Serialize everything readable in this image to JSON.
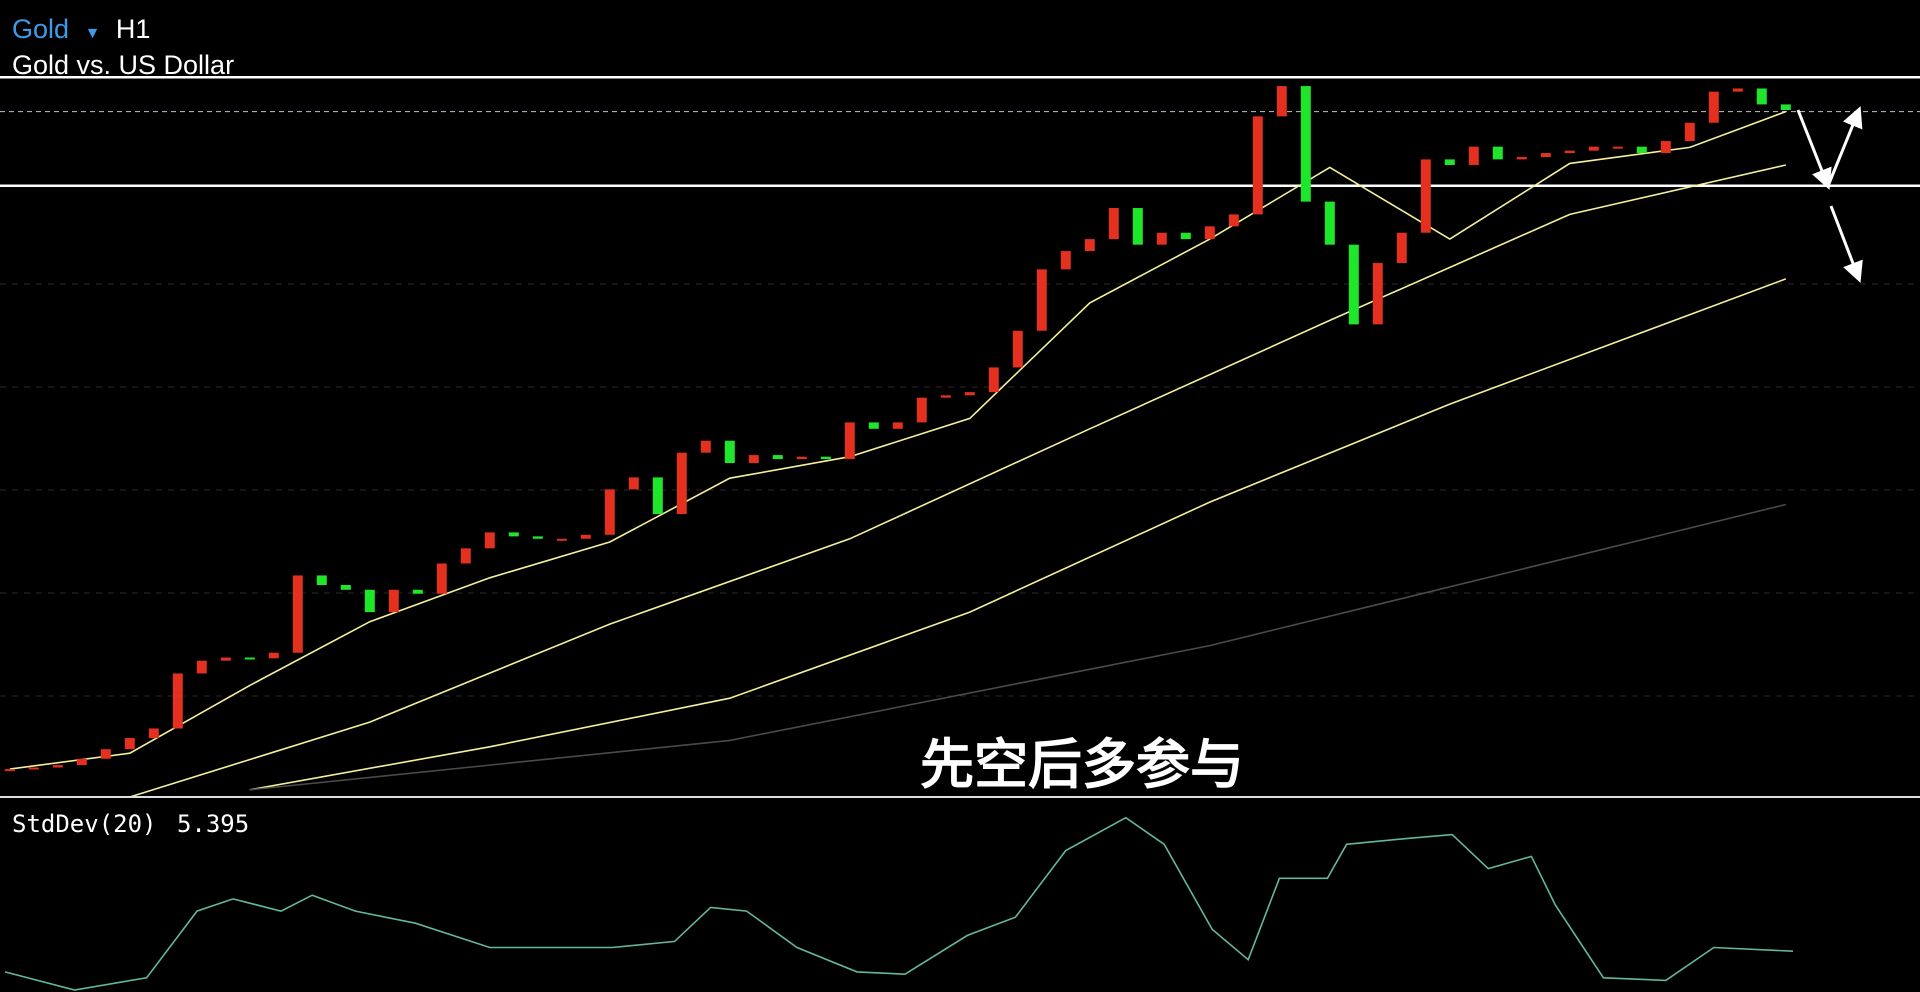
{
  "header": {
    "symbol": "Gold",
    "timeframe": "H1",
    "description": "Gold vs. US Dollar"
  },
  "annotation": "先空后多参与",
  "chart_data": [
    {
      "type": "candlestick",
      "up_color": "#e3301f",
      "down_color": "#1fe62a",
      "open": [
        3.3,
        3.5,
        3.7,
        4.0,
        4.8,
        6.0,
        7.4,
        8.6,
        15.5,
        17.1,
        17.5,
        17.4,
        18.1,
        27.8,
        26.6,
        26.0,
        23.2,
        26.0,
        25.5,
        29.3,
        31.2,
        33.2,
        32.7,
        32.4,
        32.4,
        32.9,
        38.6,
        40.1,
        35.5,
        43.2,
        44.7,
        41.9,
        42.9,
        42.4,
        42.7,
        42.4,
        47.0,
        46.2,
        47.0,
        50.1,
        50.4,
        50.8,
        53.9,
        58.5,
        66.2,
        68.5,
        70.0,
        73.9,
        69.3,
        70.8,
        70.0,
        71.6,
        73.1,
        85.4,
        89.2,
        74.7,
        69.3,
        59.3,
        67.0,
        70.8,
        80.0,
        79.3,
        81.6,
        80.0,
        80.3,
        80.8,
        81.1,
        81.6,
        81.6,
        80.8,
        82.3,
        84.6,
        88.5,
        88.9,
        86.9
      ],
      "close": [
        3.5,
        3.7,
        4.0,
        4.8,
        6.0,
        7.4,
        8.6,
        15.5,
        17.1,
        17.5,
        17.4,
        18.1,
        27.8,
        26.6,
        26.0,
        23.2,
        26.0,
        25.5,
        29.3,
        31.2,
        33.2,
        32.7,
        32.4,
        32.4,
        32.9,
        38.6,
        40.1,
        35.5,
        43.2,
        44.7,
        41.9,
        42.9,
        42.4,
        42.7,
        42.4,
        47.0,
        46.2,
        47.0,
        50.1,
        50.4,
        50.8,
        53.9,
        58.5,
        66.2,
        68.5,
        70.0,
        73.9,
        69.3,
        70.8,
        70.0,
        71.6,
        73.1,
        85.4,
        89.2,
        74.7,
        69.3,
        59.3,
        67.0,
        70.8,
        80.0,
        79.3,
        81.6,
        80.0,
        80.3,
        80.8,
        81.1,
        81.6,
        81.6,
        80.8,
        82.3,
        84.6,
        88.5,
        88.9,
        86.9,
        86.2
      ],
      "lines": [
        {
          "color": "#f4f09a",
          "x": [
            0,
            5,
            10,
            15,
            20,
            25,
            30,
            35,
            40,
            45,
            50,
            55,
            60,
            65,
            70,
            74
          ],
          "values": [
            3.5,
            5.5,
            14.0,
            22.0,
            27.5,
            32.0,
            40.0,
            42.7,
            47.5,
            62.0,
            70.0,
            79.0,
            70.0,
            79.5,
            81.5,
            86.0
          ]
        },
        {
          "color": "#f4f09a",
          "x": [
            5,
            15,
            25,
            35,
            45,
            55,
            65,
            74
          ],
          "values": [
            0,
            9.4,
            21.7,
            32.4,
            46.2,
            59.8,
            73.1,
            79.3
          ]
        },
        {
          "color": "#f4f09a",
          "x": [
            10,
            20,
            30,
            40,
            50,
            60,
            74
          ],
          "values": [
            0.9,
            6.3,
            12.4,
            23.2,
            37.0,
            49.3,
            65.0
          ]
        },
        {
          "color": "#4a4a4a",
          "x": [
            10,
            30,
            50,
            74
          ],
          "values": [
            0.9,
            7.1,
            19.0,
            36.7
          ]
        }
      ],
      "levels": [
        {
          "value": 90.3,
          "style": "solid"
        },
        {
          "value": 86.0,
          "style": "dashed"
        },
        {
          "value": 76.7,
          "style": "solid"
        }
      ]
    },
    {
      "type": "line",
      "title": "StdDev(20)",
      "current": 5.395,
      "color": "#63b6a0",
      "x": [
        -0.2,
        2.7,
        5.7,
        7.8,
        9.3,
        11.3,
        12.6,
        14.4,
        16.9,
        20,
        22.6,
        25.1,
        27.7,
        29.2,
        30.7,
        32.8,
        35.3,
        37.3,
        39.9,
        41.9,
        44,
        46.5,
        48.1,
        50.1,
        51.6,
        52.9,
        54.9,
        55.7,
        58.3,
        60.1,
        61.6,
        63.4,
        64.4,
        66.4,
        69,
        71,
        74.3
      ],
      "values": [
        9.4,
        0,
        6.3,
        40.9,
        47.2,
        40.9,
        49.1,
        40.9,
        34.6,
        22.0,
        22.0,
        22.0,
        25.2,
        42.8,
        40.9,
        22.0,
        9.4,
        8.2,
        28.3,
        37.7,
        72.3,
        89.3,
        75.5,
        31.4,
        15.7,
        57.9,
        57.9,
        75.5,
        78.6,
        80.5,
        62.9,
        69.2,
        44.0,
        6.3,
        5.0,
        22.0,
        20.1
      ]
    }
  ]
}
